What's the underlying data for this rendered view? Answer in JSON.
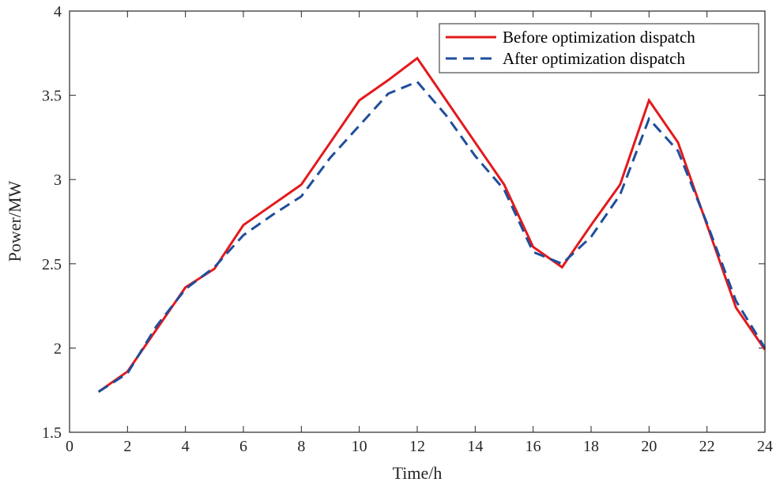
{
  "chart_data": {
    "type": "line",
    "title": "",
    "xlabel": "Time/h",
    "ylabel": "Power/MW",
    "xlim": [
      0,
      24
    ],
    "ylim": [
      1.5,
      4
    ],
    "xticks": [
      "0",
      "2",
      "4",
      "6",
      "8",
      "10",
      "12",
      "14",
      "16",
      "18",
      "20",
      "22",
      "24"
    ],
    "yticks": [
      "1.5",
      "2",
      "2.5",
      "3",
      "3.5",
      "4"
    ],
    "x": [
      1,
      2,
      3,
      4,
      5,
      6,
      7,
      8,
      9,
      10,
      11,
      12,
      13,
      14,
      15,
      16,
      17,
      18,
      19,
      20,
      21,
      22,
      23,
      24
    ],
    "grid": false,
    "legend_position": "top-right",
    "series": [
      {
        "name": "Before optimization dispatch",
        "color": "#e31a1c",
        "style": "solid",
        "values": [
          1.74,
          1.86,
          2.11,
          2.36,
          2.47,
          2.73,
          2.85,
          2.97,
          3.22,
          3.47,
          3.59,
          3.72,
          3.47,
          3.22,
          2.97,
          2.6,
          2.48,
          2.73,
          2.97,
          3.47,
          3.22,
          2.73,
          2.24,
          1.99
        ]
      },
      {
        "name": "After optimization dispatch",
        "color": "#1f4e9c",
        "style": "dashed",
        "values": [
          1.74,
          1.85,
          2.13,
          2.35,
          2.48,
          2.67,
          2.79,
          2.9,
          3.13,
          3.32,
          3.51,
          3.58,
          3.38,
          3.14,
          2.94,
          2.57,
          2.5,
          2.66,
          2.91,
          3.36,
          3.17,
          2.74,
          2.28,
          2.0
        ]
      }
    ]
  }
}
